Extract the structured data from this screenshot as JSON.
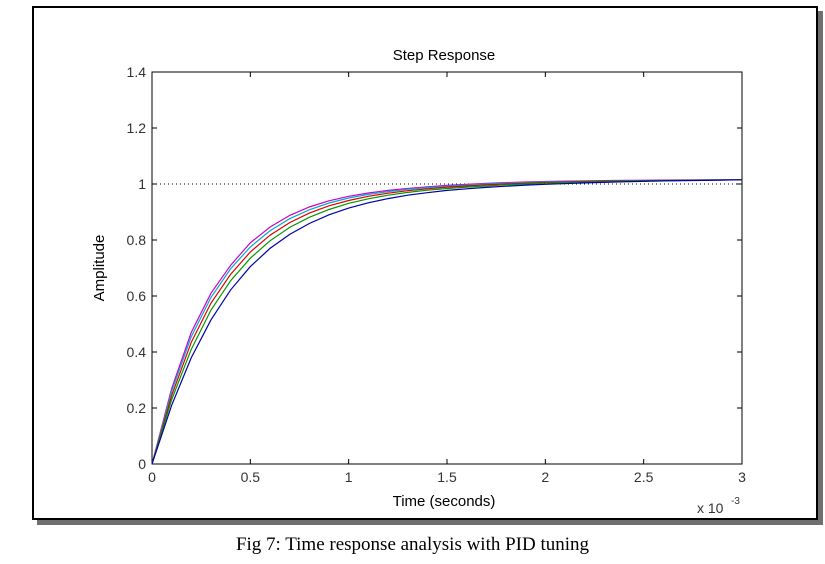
{
  "caption": "Fig 7: Time response analysis with PID tuning",
  "chart_data": {
    "type": "line",
    "title": "Step Response",
    "xlabel": "Time (seconds)",
    "ylabel": "Amplitude",
    "x_exponent_base": "x 10",
    "x_exponent_power": "-3",
    "xlim": [
      0,
      3
    ],
    "ylim": [
      0,
      1.4
    ],
    "xticks": [
      0,
      0.5,
      1,
      1.5,
      2,
      2.5,
      3
    ],
    "xtick_labels": [
      "0",
      "0.5",
      "1",
      "1.5",
      "2",
      "2.5",
      "3"
    ],
    "yticks": [
      0,
      0.2,
      0.4,
      0.6,
      0.8,
      1,
      1.2,
      1.4
    ],
    "ytick_labels": [
      "0",
      "0.2",
      "0.4",
      "0.6",
      "0.8",
      "1",
      "1.2",
      "1.4"
    ],
    "reference_line": {
      "y": 1,
      "style": "dotted",
      "color": "#000000"
    },
    "x": [
      0,
      0.1,
      0.2,
      0.3,
      0.4,
      0.5,
      0.6,
      0.7,
      0.8,
      0.9,
      1.0,
      1.1,
      1.2,
      1.3,
      1.4,
      1.5,
      1.6,
      1.7,
      1.8,
      1.9,
      2.0,
      2.2,
      2.4,
      2.6,
      2.8,
      3.0
    ],
    "series": [
      {
        "name": "magenta",
        "color": "#cc00cc",
        "values": [
          0,
          0.27,
          0.47,
          0.61,
          0.71,
          0.79,
          0.846,
          0.888,
          0.918,
          0.94,
          0.956,
          0.968,
          0.977,
          0.984,
          0.99,
          0.995,
          0.999,
          1.002,
          1.005,
          1.007,
          1.009,
          1.011,
          1.013,
          1.014,
          1.015,
          1.015
        ]
      },
      {
        "name": "cyan",
        "color": "#00aacc",
        "values": [
          0,
          0.26,
          0.455,
          0.595,
          0.698,
          0.775,
          0.833,
          0.876,
          0.908,
          0.932,
          0.95,
          0.963,
          0.973,
          0.981,
          0.987,
          0.992,
          0.996,
          1.0,
          1.003,
          1.005,
          1.007,
          1.01,
          1.012,
          1.013,
          1.014,
          1.015
        ]
      },
      {
        "name": "red",
        "color": "#dd0000",
        "values": [
          0,
          0.245,
          0.435,
          0.575,
          0.678,
          0.757,
          0.817,
          0.862,
          0.896,
          0.922,
          0.941,
          0.956,
          0.967,
          0.976,
          0.983,
          0.989,
          0.993,
          0.997,
          1.0,
          1.003,
          1.005,
          1.009,
          1.011,
          1.013,
          1.014,
          1.015
        ]
      },
      {
        "name": "green",
        "color": "#009900",
        "values": [
          0,
          0.23,
          0.41,
          0.55,
          0.655,
          0.735,
          0.797,
          0.845,
          0.881,
          0.909,
          0.931,
          0.947,
          0.96,
          0.97,
          0.978,
          0.984,
          0.989,
          0.993,
          0.997,
          1.0,
          1.003,
          1.007,
          1.01,
          1.012,
          1.014,
          1.015
        ]
      },
      {
        "name": "blue",
        "color": "#0000aa",
        "values": [
          0,
          0.21,
          0.38,
          0.515,
          0.622,
          0.705,
          0.77,
          0.82,
          0.859,
          0.89,
          0.914,
          0.933,
          0.948,
          0.96,
          0.969,
          0.977,
          0.983,
          0.988,
          0.992,
          0.996,
          0.999,
          1.004,
          1.008,
          1.011,
          1.013,
          1.015
        ]
      }
    ]
  }
}
